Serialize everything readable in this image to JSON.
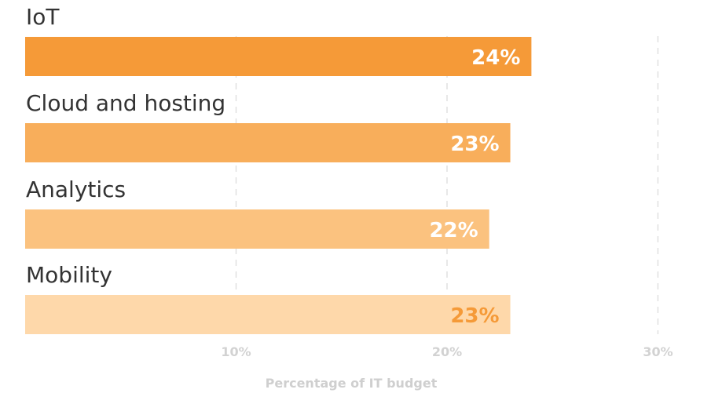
{
  "chart_data": {
    "type": "bar",
    "orientation": "horizontal",
    "categories": [
      "IoT",
      "Cloud and hosting",
      "Analytics",
      "Mobility"
    ],
    "values": [
      24,
      23,
      22,
      23
    ],
    "value_labels": [
      "24%",
      "23%",
      "22%",
      "23%"
    ],
    "bar_colors": [
      "#f59a38",
      "#f8ae5b",
      "#fbc27f",
      "#fed8aa"
    ],
    "value_label_colors": [
      "#ffffff",
      "#ffffff",
      "#ffffff",
      "#f59a38"
    ],
    "xlabel": "Percentage of IT budget",
    "xlim": [
      0,
      30
    ],
    "xticks": [
      10,
      20,
      30
    ],
    "xtick_labels": [
      "10%",
      "20%",
      "30%"
    ],
    "grid": "vertical dashed"
  }
}
